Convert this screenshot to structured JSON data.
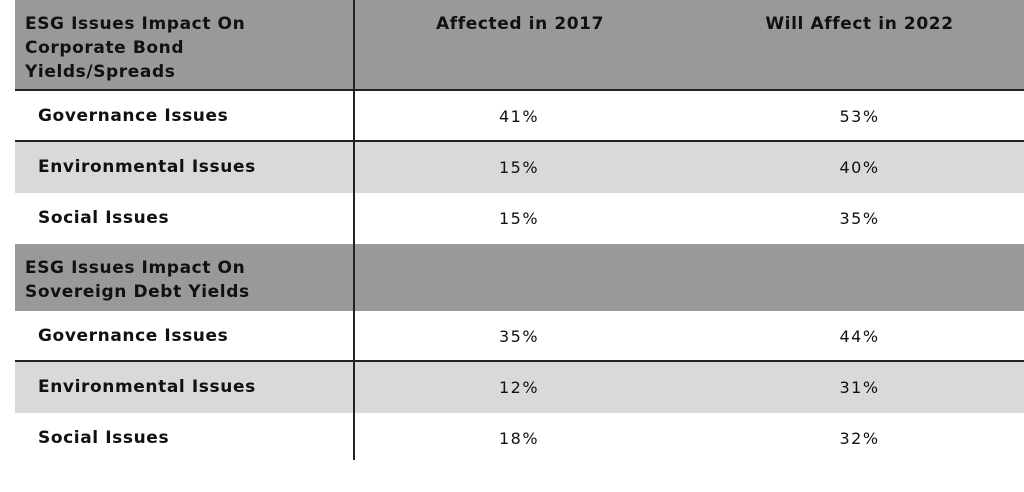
{
  "chart_data": {
    "type": "table",
    "columns": [
      "ESG Issues Impact On Corporate Bond Yields/Spreads",
      "Affected in 2017",
      "Will Affect in 2022"
    ],
    "header": {
      "label_lines": [
        "ESG Issues Impact On",
        "Corporate Bond",
        "Yields/Spreads"
      ],
      "col1": "Affected in 2017",
      "col2": "Will Affect in 2022"
    },
    "groups": [
      {
        "rows": [
          {
            "label": "Governance Issues",
            "v2017": "41%",
            "v2022": "53%"
          },
          {
            "label": "Environmental Issues",
            "v2017": "15%",
            "v2022": "40%"
          },
          {
            "label": "Social Issues",
            "v2017": "15%",
            "v2022": "35%"
          }
        ]
      },
      {
        "title_lines": [
          "ESG Issues Impact On",
          "Sovereign Debt Yields"
        ],
        "rows": [
          {
            "label": "Governance Issues",
            "v2017": "35%",
            "v2022": "44%"
          },
          {
            "label": "Environmental Issues",
            "v2017": "12%",
            "v2022": "31%"
          },
          {
            "label": "Social Issues",
            "v2017": "18%",
            "v2022": "32%"
          }
        ]
      }
    ]
  },
  "colors": {
    "header_bg": "#999999",
    "band_grey": "#d9d9d9",
    "band_white": "#ffffff",
    "rule": "#222222"
  }
}
